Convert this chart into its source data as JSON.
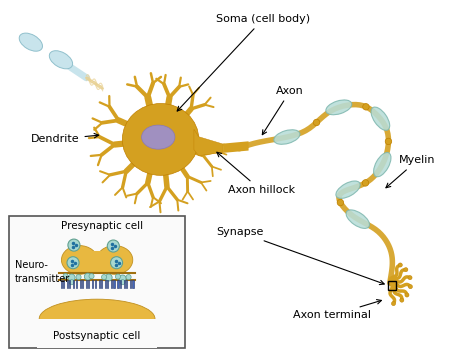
{
  "bg_color": "#ffffff",
  "soma_color": "#D4A020",
  "soma_edge_color": "#C08000",
  "soma_nucleus_color": "#A090C0",
  "axon_color": "#D4A020",
  "myelin_color": "#B8DDD8",
  "myelin_edge_color": "#80B8B0",
  "myelin_node_color": "#D4A020",
  "terminal_color": "#D4A020",
  "incoming_color": "#C8E4EC",
  "incoming_edge": "#90C0CC",
  "synapse_bg": "#F5F5F5",
  "synapse_border": "#444444",
  "presynaptic_color": "#E8B840",
  "postsynaptic_color": "#E8B840",
  "vesicle_fill": "#A8D8D0",
  "vesicle_edge": "#60A090",
  "vesicle_dot": "#2070A0",
  "nt_fill": "#A8D8D0",
  "nt_edge": "#60A090",
  "receptor_fill": "#4466BB",
  "receptor_edge": "#223366",
  "label_color": "#000000",
  "arrow_color": "#000000",
  "labels": {
    "soma": "Soma (cell body)",
    "axon": "Axon",
    "axon_hillock": "Axon hillock",
    "dendrite": "Dendrite",
    "myelin": "Myelin",
    "synapse": "Synapse",
    "axon_terminal": "Axon terminal",
    "presynaptic": "Presynaptic cell",
    "postsynaptic": "Postsynaptic cell",
    "neurotransmitter": "Neuro-\ntransmitter"
  },
  "figsize": [
    4.74,
    3.53
  ],
  "dpi": 100
}
